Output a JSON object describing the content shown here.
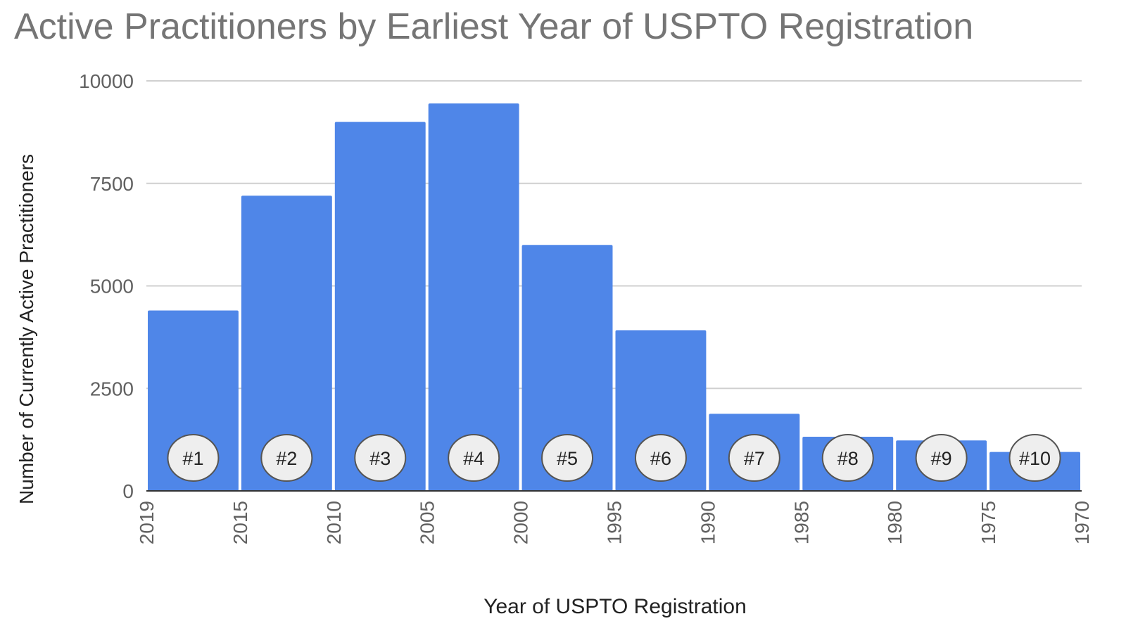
{
  "chart_data": {
    "type": "bar",
    "title": "Active Practitioners by Earliest Year of USPTO Registration",
    "xlabel": "Year of USPTO Registration",
    "ylabel": "Number of Currently Active Practitioners",
    "ylim": [
      0,
      10000
    ],
    "yticks": [
      "0",
      "2500",
      "5000",
      "7500",
      "10000"
    ],
    "xticks": [
      "2019",
      "2015",
      "2010",
      "2005",
      "2000",
      "1995",
      "1990",
      "1985",
      "1980",
      "1975",
      "1970"
    ],
    "categories": [
      "2019–2015",
      "2015–2010",
      "2010–2005",
      "2005–2000",
      "2000–1995",
      "1995–1990",
      "1990–1985",
      "1985–1980",
      "1980–1975",
      "1975–1970"
    ],
    "values": [
      4400,
      7200,
      9000,
      9450,
      6000,
      3920,
      1880,
      1320,
      1230,
      950
    ],
    "badges": [
      "#1",
      "#2",
      "#3",
      "#4",
      "#5",
      "#6",
      "#7",
      "#8",
      "#9",
      "#10"
    ],
    "bar_color": "#4f86e8",
    "grid": true,
    "legend": "none"
  }
}
